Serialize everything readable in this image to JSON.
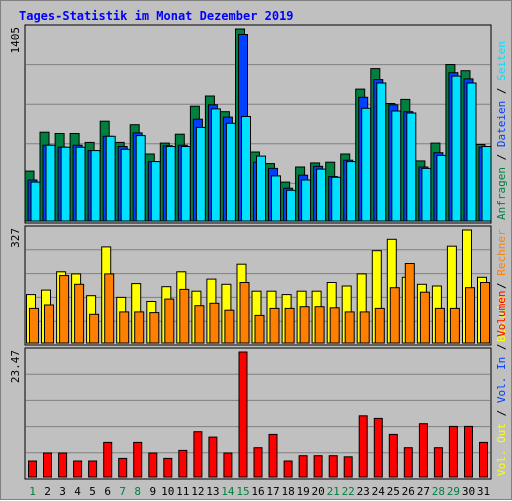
{
  "chart_data": {
    "title": "Tages-Statistik im Monat Dezember 2019",
    "colors": {
      "background": "#c0c0c0",
      "title": "#0000ff",
      "hits": "#008040",
      "files": "#0040ff",
      "pages": "#00e0ff",
      "visits": "#ffff00",
      "sites": "#ff8000",
      "volume": "#ff0000",
      "weekend_label": "#008040",
      "weekday_label": "#000000"
    },
    "days": [
      "1",
      "2",
      "3",
      "4",
      "5",
      "6",
      "7",
      "8",
      "9",
      "10",
      "11",
      "12",
      "13",
      "14",
      "15",
      "16",
      "17",
      "18",
      "19",
      "20",
      "21",
      "22",
      "23",
      "24",
      "25",
      "26",
      "27",
      "28",
      "29",
      "30",
      "31"
    ],
    "weekend_days": [
      "1",
      "7",
      "8",
      "14",
      "15",
      "21",
      "22",
      "28",
      "29"
    ],
    "panels": [
      {
        "type": "bar",
        "max_label": "1405",
        "ylim": [
          0,
          1405
        ],
        "legend": [
          {
            "label": "Anfragen",
            "color": "#008040"
          },
          {
            "label": "Dateien",
            "color": "#0040ff"
          },
          {
            "label": "Seiten",
            "color": "#00e0ff"
          }
        ],
        "series": [
          {
            "name": "Anfragen",
            "values": [
              365,
              650,
              640,
              640,
              575,
              730,
              575,
              705,
              490,
              570,
              635,
              840,
              915,
              800,
              1405,
              505,
              420,
              285,
              395,
              425,
              430,
              490,
              965,
              1115,
              860,
              890,
              440,
              570,
              1145,
              1100,
              560
            ]
          },
          {
            "name": "Dateien",
            "values": [
              300,
              555,
              540,
              555,
              515,
              620,
              545,
              645,
              435,
              550,
              555,
              745,
              850,
              760,
              1365,
              430,
              385,
              240,
              335,
              400,
              325,
              445,
              905,
              1035,
              850,
              800,
              395,
              500,
              1085,
              1040,
              540
            ]
          },
          {
            "name": "Seiten",
            "values": [
              285,
              555,
              540,
              540,
              515,
              620,
              525,
              625,
              435,
              545,
              545,
              685,
              820,
              715,
              765,
              475,
              330,
              225,
              300,
              380,
              320,
              435,
              825,
              1010,
              805,
              790,
              385,
              480,
              1060,
              1010,
              545
            ]
          }
        ]
      },
      {
        "type": "bar",
        "max_label": "327",
        "ylim": [
          0,
          327
        ],
        "legend": [
          {
            "label": "Besuche",
            "color": "#ffff00"
          },
          {
            "label": "Rechner",
            "color": "#ff8000"
          }
        ],
        "series": [
          {
            "name": "Besuche",
            "values": [
              140,
              153,
              206,
              200,
              137,
              278,
              132,
              172,
              120,
              163,
              206,
              150,
              185,
              170,
              228,
              150,
              150,
              140,
              150,
              150,
              175,
              165,
              200,
              267,
              300,
              190,
              170,
              165,
              280,
              327,
              190
            ]
          },
          {
            "name": "Rechner",
            "values": [
              100,
              110,
              195,
              170,
              83,
              200,
              90,
              90,
              88,
              127,
              155,
              108,
              115,
              95,
              175,
              80,
              100,
              100,
              105,
              105,
              102,
              90,
              90,
              100,
              160,
              230,
              147,
              100,
              100,
              160,
              175
            ]
          }
        ]
      },
      {
        "type": "bar",
        "max_label": "23.47",
        "ylim": [
          0,
          23.47
        ],
        "legend": [
          {
            "label": "Vol. Out",
            "color": "#ffff00"
          },
          {
            "label": "Vol. In",
            "color": "#0040ff"
          },
          {
            "label": "Volumen",
            "color": "#ff0000"
          }
        ],
        "series": [
          {
            "name": "Volumen",
            "values": [
              3.0,
              4.5,
              4.5,
              3.0,
              3.0,
              6.5,
              3.5,
              6.5,
              4.5,
              3.5,
              5.0,
              8.5,
              7.5,
              4.5,
              23.47,
              5.5,
              8.0,
              3.0,
              4.0,
              4.0,
              4.0,
              3.8,
              11.5,
              11.0,
              8.0,
              5.5,
              10.0,
              5.5,
              9.5,
              9.5,
              6.5
            ]
          }
        ]
      }
    ]
  }
}
